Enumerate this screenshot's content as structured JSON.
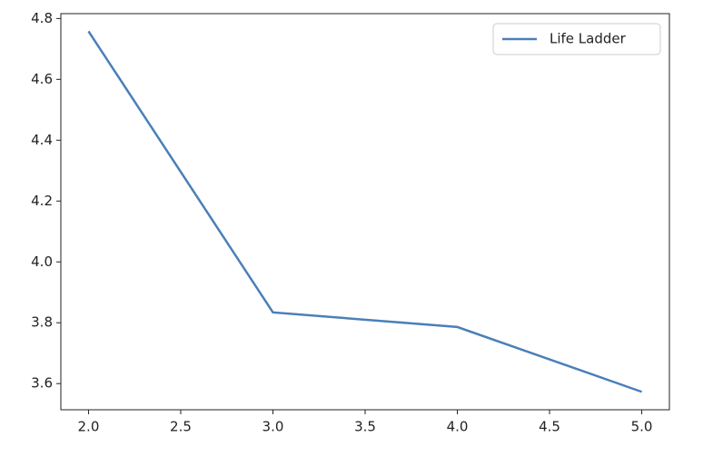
{
  "chart_data": {
    "type": "line",
    "x": [
      2,
      3,
      4,
      5
    ],
    "series": [
      {
        "name": "Life Ladder",
        "color": "#4a7fb9",
        "values": [
          4.758,
          3.834,
          3.786,
          3.573
        ]
      }
    ],
    "xlim": [
      1.85,
      5.15
    ],
    "ylim": [
      3.514,
      4.816
    ],
    "xticks": [
      {
        "value": 2,
        "label": "2.0"
      },
      2.5,
      {
        "value": 3,
        "label": "3.0"
      },
      3.5,
      {
        "value": 4,
        "label": "4.0"
      },
      4.5,
      {
        "value": 5,
        "label": "5.0"
      }
    ],
    "yticks": [
      3.6,
      3.8,
      {
        "value": 4,
        "label": "4.0"
      },
      4.2,
      4.4,
      4.6,
      4.8
    ],
    "legend": "upper right",
    "grid": false
  }
}
